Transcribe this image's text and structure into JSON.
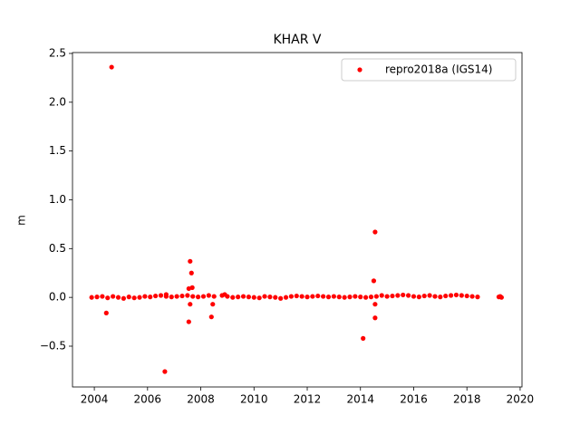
{
  "chart_data": {
    "type": "scatter",
    "title": "KHAR V",
    "ylabel": "m",
    "xlim": [
      2003.18,
      2020.07
    ],
    "ylim": [
      -0.918,
      2.509
    ],
    "xticks": [
      2004,
      2006,
      2008,
      2010,
      2012,
      2014,
      2016,
      2018,
      2020
    ],
    "yticks": [
      {
        "value": -0.5,
        "label": "−0.5"
      },
      {
        "value": 0,
        "label": "0.0"
      },
      0.5,
      {
        "value": 1,
        "label": "1.0"
      },
      1.5,
      {
        "value": 2,
        "label": "2.0"
      },
      2.5
    ],
    "grid": false,
    "legend": "upper right",
    "series": [
      {
        "name": "repro2018a (IGS14)",
        "color": "#ff0000",
        "x": [
          2003.9,
          2004.1,
          2004.3,
          2004.5,
          2004.7,
          2004.9,
          2005.1,
          2005.3,
          2005.5,
          2005.7,
          2005.9,
          2006.1,
          2006.3,
          2006.5,
          2006.7,
          2006.9,
          2007.1,
          2007.3,
          2007.5,
          2007.7,
          2007.9,
          2008.1,
          2008.3,
          2008.5,
          2008.8,
          2009,
          2009.2,
          2009.4,
          2009.6,
          2009.8,
          2010,
          2010.2,
          2010.4,
          2010.6,
          2010.8,
          2011,
          2011.2,
          2011.4,
          2011.6,
          2011.8,
          2012,
          2012.2,
          2012.4,
          2012.6,
          2012.8,
          2013,
          2013.2,
          2013.4,
          2013.6,
          2013.8,
          2014,
          2014.2,
          2014.4,
          2014.6,
          2014.8,
          2015,
          2015.2,
          2015.4,
          2015.6,
          2015.8,
          2016,
          2016.2,
          2016.4,
          2016.6,
          2016.8,
          2017,
          2017.2,
          2017.4,
          2017.6,
          2017.8,
          2018,
          2018.2,
          2018.4,
          2019.2,
          2019.25,
          2019.3,
          2004.65,
          2004.45,
          2006.65,
          2006.7,
          2007.6,
          2007.65,
          2007.55,
          2007.68,
          2007.6,
          2007.55,
          2008.4,
          2008.45,
          2008.9,
          2014.55,
          2014.5,
          2014.55,
          2014.55,
          2014.1
        ],
        "values": [
          0,
          0.005,
          0.01,
          -0.005,
          0.01,
          0,
          -0.01,
          0.005,
          -0.005,
          0,
          0.01,
          0.005,
          0.015,
          0.02,
          0.01,
          0.005,
          0.01,
          0.015,
          0.02,
          0.01,
          0.005,
          0.01,
          0.02,
          0.01,
          0.02,
          0.01,
          0,
          0.005,
          0.01,
          0.005,
          0,
          -0.005,
          0.01,
          0.005,
          0,
          -0.01,
          0,
          0.01,
          0.015,
          0.01,
          0.005,
          0.01,
          0.015,
          0.01,
          0.005,
          0.01,
          0.005,
          0,
          0.005,
          0.01,
          0.005,
          0,
          0.005,
          0.01,
          0.02,
          0.01,
          0.015,
          0.02,
          0.025,
          0.02,
          0.01,
          0.005,
          0.015,
          0.02,
          0.01,
          0.005,
          0.015,
          0.02,
          0.025,
          0.02,
          0.015,
          0.01,
          0.005,
          0.005,
          0.01,
          0,
          2.36,
          -0.16,
          -0.76,
          0.03,
          0.37,
          0.25,
          0.09,
          0.1,
          -0.07,
          -0.25,
          -0.2,
          -0.07,
          0.03,
          0.67,
          0.17,
          -0.07,
          -0.21,
          -0.42
        ]
      }
    ]
  }
}
